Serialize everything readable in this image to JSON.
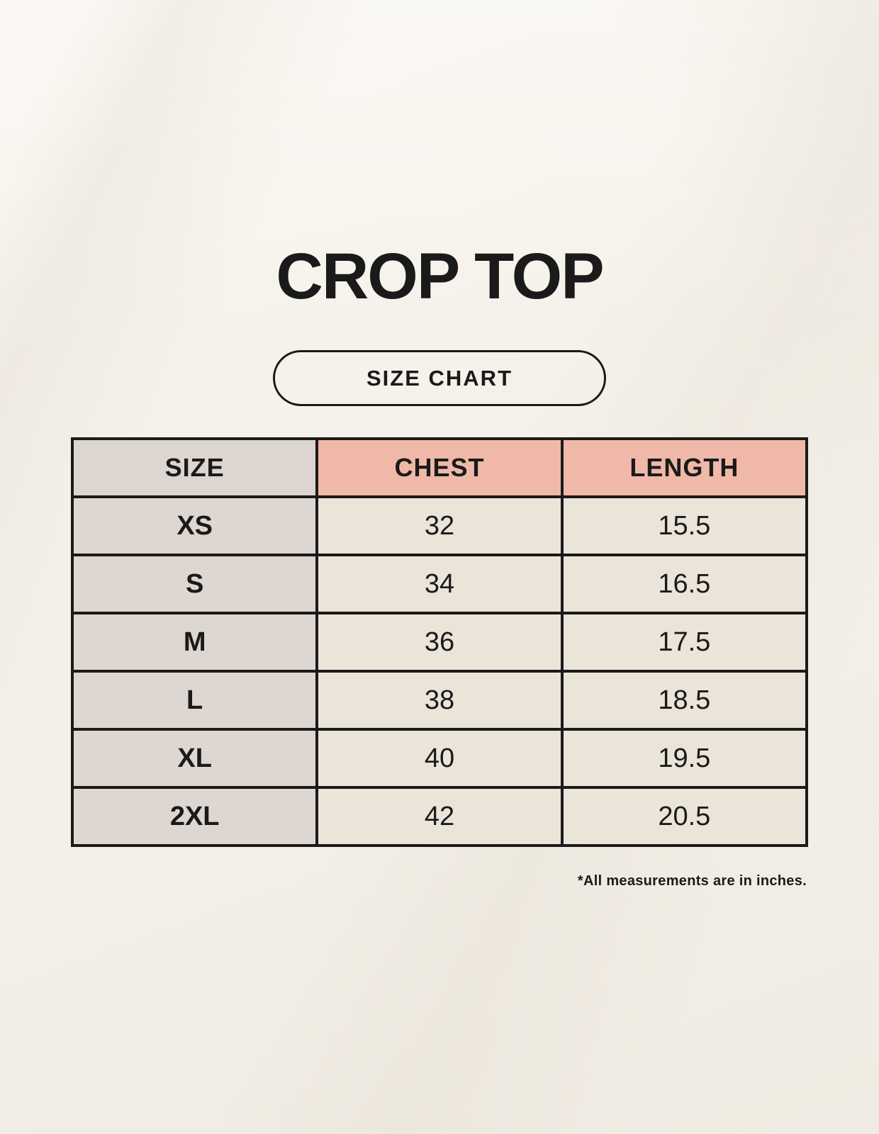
{
  "chart_data": {
    "type": "table",
    "title": "CROP TOP",
    "subtitle": "SIZE CHART",
    "columns": [
      "SIZE",
      "CHEST",
      "LENGTH"
    ],
    "rows": [
      [
        "XS",
        "32",
        "15.5"
      ],
      [
        "S",
        "34",
        "16.5"
      ],
      [
        "M",
        "36",
        "17.5"
      ],
      [
        "L",
        "38",
        "18.5"
      ],
      [
        "XL",
        "40",
        "19.5"
      ],
      [
        "2XL",
        "42",
        "20.5"
      ]
    ],
    "footnote": "*All measurements are in inches.",
    "units": "inches"
  },
  "colors": {
    "background": "#f5f1e9",
    "header_size_bg": "#dcd5d0",
    "header_measure_bg": "#f0b8a8",
    "cell_size_bg": "#ddd6d1",
    "cell_value_bg": "#eae4d9",
    "border_ink": "#1a1a1a",
    "text_ink": "#1a1a1a"
  }
}
